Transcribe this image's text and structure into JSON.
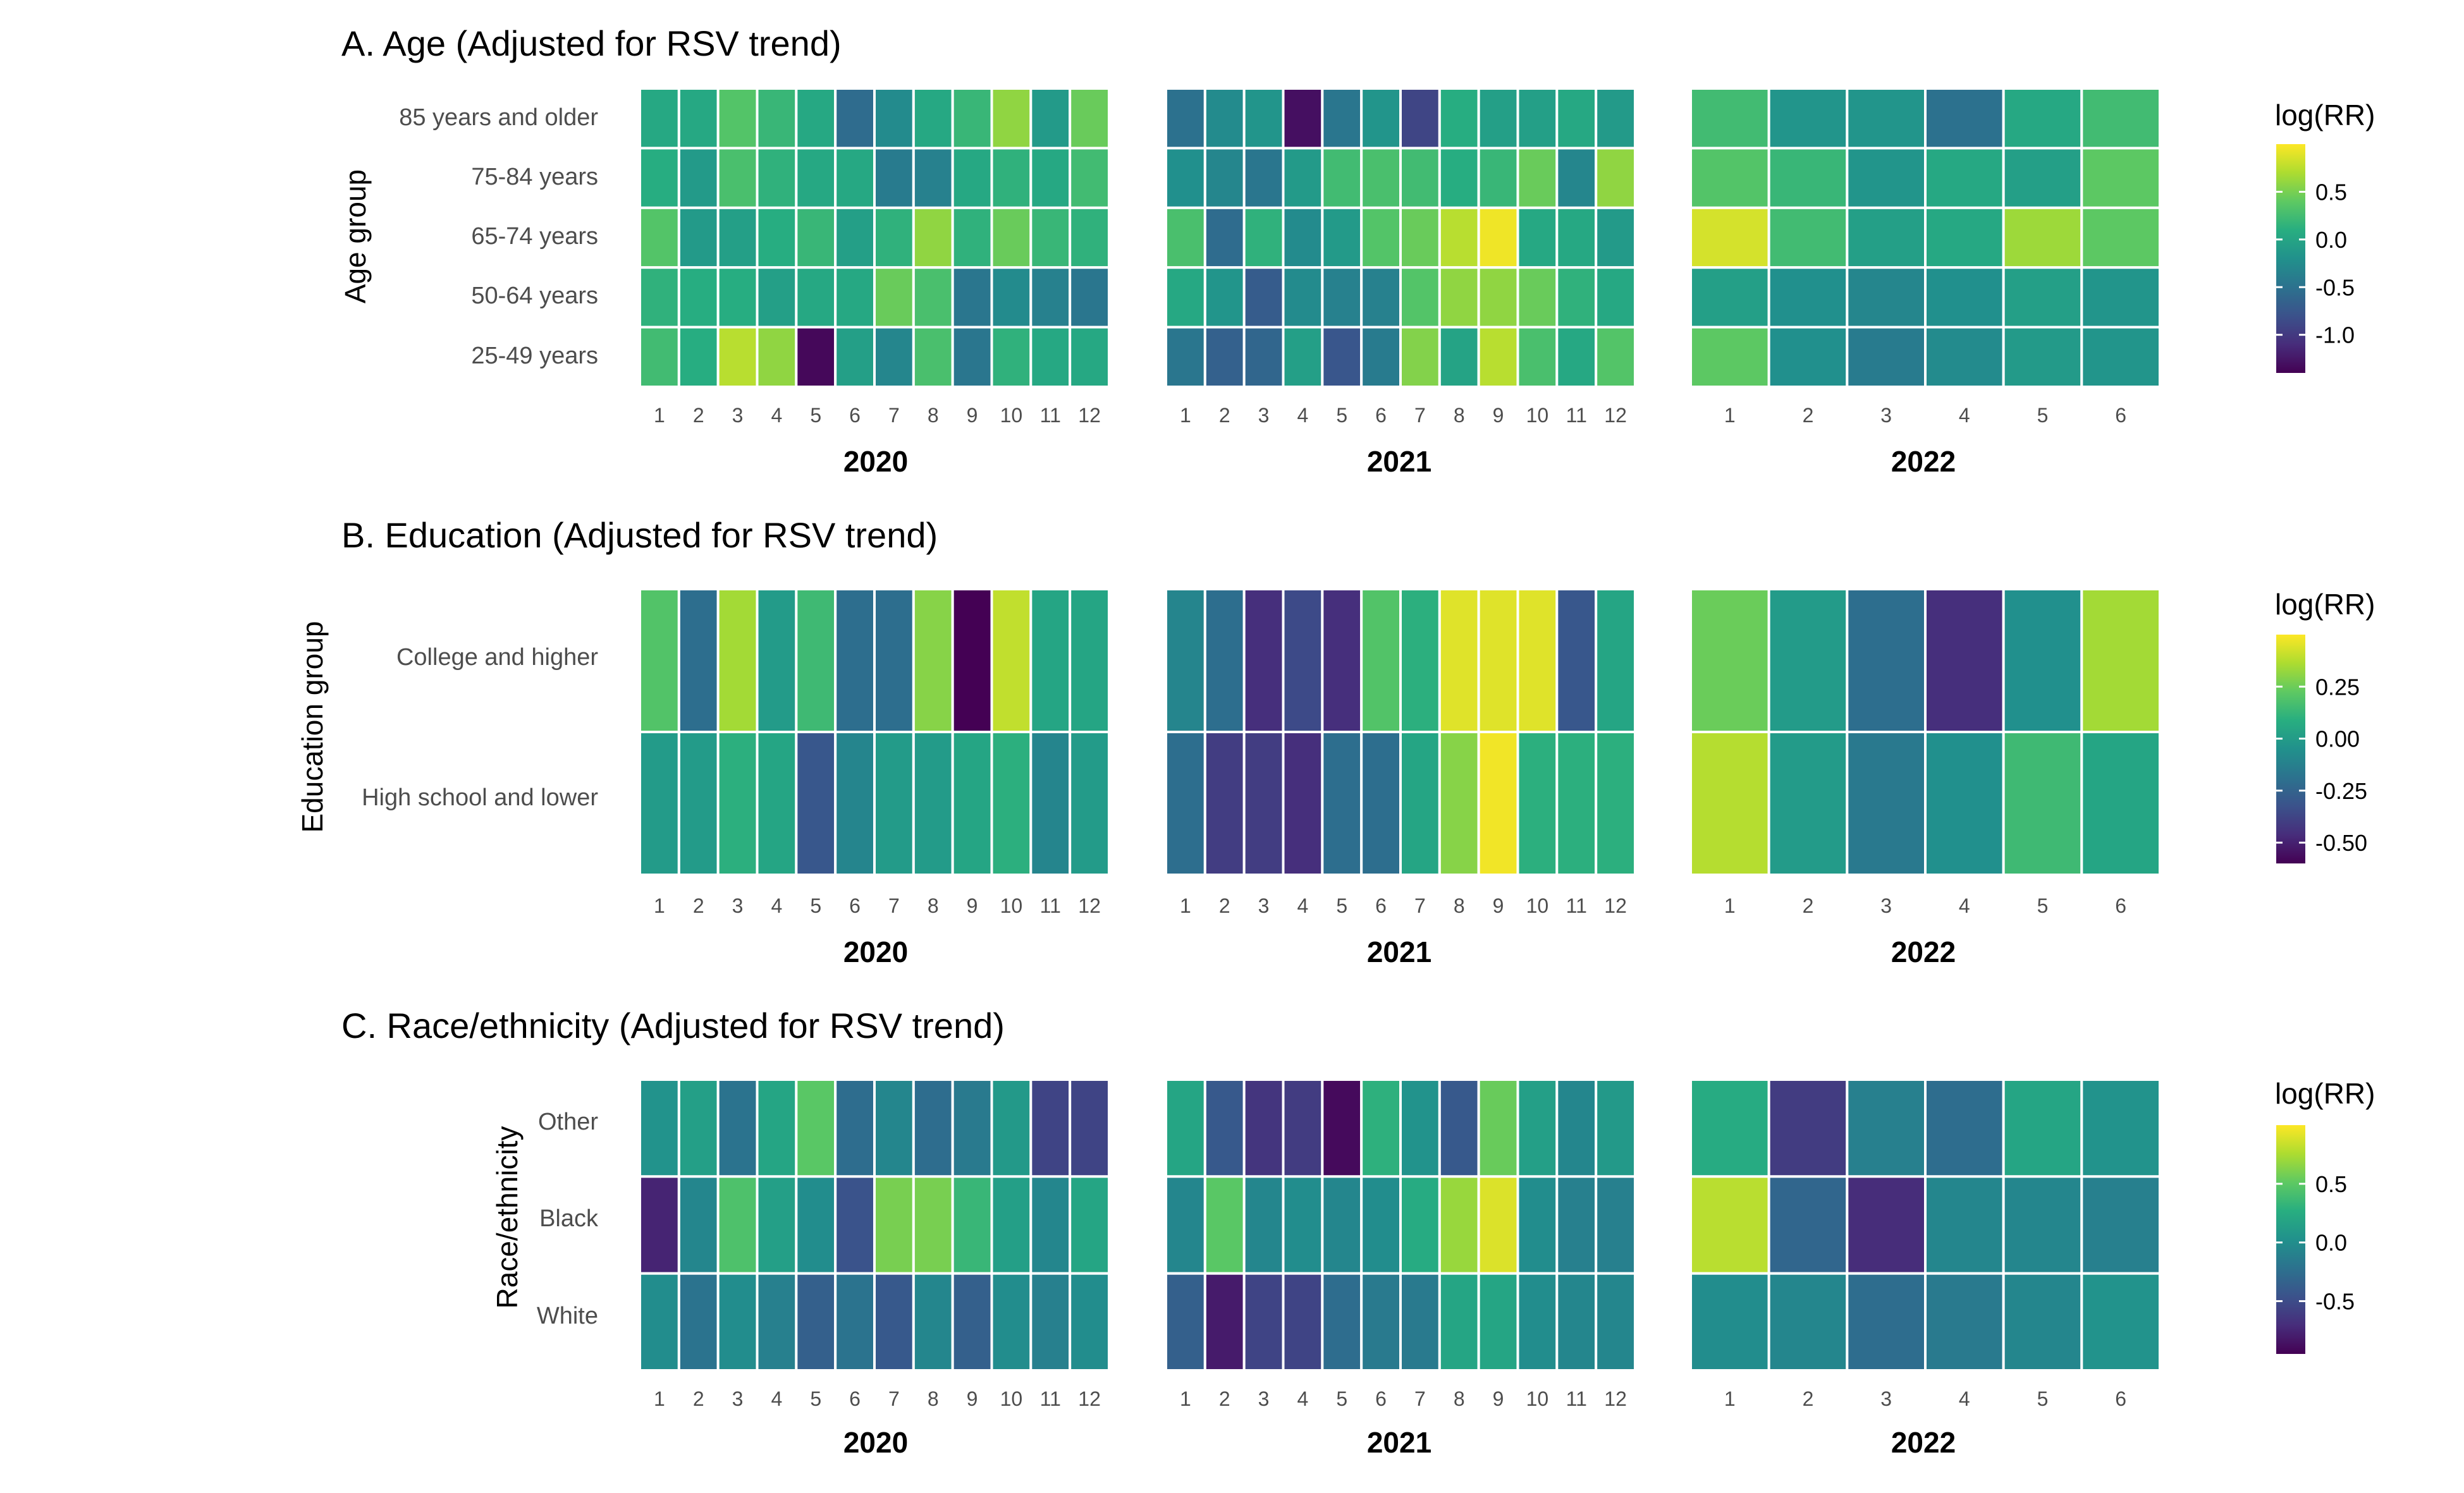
{
  "chart_data": [
    {
      "type": "heatmap",
      "title": "A. Age (Adjusted for RSV trend)",
      "ylabel": "Age group",
      "rows": [
        "85 years and older",
        "75-84 years",
        "65-74 years",
        "50-64 years",
        "25-49 years"
      ],
      "years": [
        {
          "label": "2020",
          "months": [
            "1",
            "2",
            "3",
            "4",
            "5",
            "6",
            "7",
            "8",
            "9",
            "10",
            "11",
            "12"
          ]
        },
        {
          "label": "2021",
          "months": [
            "1",
            "2",
            "3",
            "4",
            "5",
            "6",
            "7",
            "8",
            "9",
            "10",
            "11",
            "12"
          ]
        },
        {
          "label": "2022",
          "months": [
            "1",
            "2",
            "3",
            "4",
            "5",
            "6"
          ]
        }
      ],
      "values": [
        [
          [
            0.05,
            0.05,
            0.35,
            0.2,
            0.05,
            -0.55,
            -0.25,
            0.05,
            0.2,
            0.6,
            -0.1,
            0.45
          ],
          [
            -0.5,
            -0.25,
            -0.15,
            -1.3,
            -0.45,
            -0.15,
            -0.9,
            0.1,
            -0.05,
            -0.05,
            0.05,
            -0.1
          ],
          [
            0.25,
            -0.15,
            -0.15,
            -0.5,
            0.05,
            0.25
          ]
        ],
        [
          [
            0.1,
            -0.1,
            0.3,
            0.15,
            0.05,
            0.05,
            -0.4,
            -0.35,
            0.05,
            0.15,
            0.05,
            0.25
          ],
          [
            -0.2,
            -0.3,
            -0.45,
            -0.1,
            0.25,
            0.3,
            0.25,
            0.1,
            0.2,
            0.45,
            -0.3,
            0.6
          ],
          [
            0.35,
            0.2,
            -0.15,
            0.05,
            -0.05,
            0.4
          ]
        ],
        [
          [
            0.35,
            -0.1,
            -0.05,
            0.1,
            0.2,
            -0.05,
            0.15,
            0.6,
            0.15,
            0.45,
            0.2,
            0.15
          ],
          [
            0.3,
            -0.55,
            0.15,
            -0.25,
            -0.1,
            0.35,
            0.45,
            0.75,
            0.95,
            0.05,
            0.05,
            -0.1
          ],
          [
            0.85,
            0.25,
            -0.05,
            0.05,
            0.65,
            0.4
          ]
        ],
        [
          [
            0.15,
            0.1,
            0.1,
            -0.05,
            0.05,
            0.05,
            0.45,
            0.3,
            -0.45,
            -0.25,
            -0.35,
            -0.45
          ],
          [
            0.05,
            -0.15,
            -0.7,
            -0.25,
            -0.35,
            -0.35,
            0.35,
            0.6,
            0.6,
            0.45,
            0.15,
            0.05
          ],
          [
            -0.05,
            -0.2,
            -0.3,
            -0.2,
            -0.05,
            -0.15
          ]
        ],
        [
          [
            0.25,
            0.1,
            0.75,
            0.6,
            -1.35,
            -0.05,
            -0.3,
            0.3,
            -0.45,
            0.15,
            0.05,
            0.05
          ],
          [
            -0.45,
            -0.65,
            -0.6,
            -0.05,
            -0.75,
            -0.4,
            0.55,
            0.0,
            0.75,
            0.3,
            0.05,
            0.35
          ],
          [
            0.4,
            -0.2,
            -0.4,
            -0.25,
            -0.1,
            -0.15
          ]
        ]
      ],
      "legend": {
        "title": "log(RR)",
        "min": -1.4,
        "max": 1.0,
        "ticks": [
          0.5,
          0.0,
          -0.5,
          -1.0
        ],
        "tick_labels": [
          "0.5",
          "0.0",
          "-0.5",
          "-1.0"
        ]
      }
    },
    {
      "type": "heatmap",
      "title": "B. Education (Adjusted for RSV trend)",
      "ylabel": "Education group",
      "rows": [
        "College and higher",
        "High school and lower"
      ],
      "years": [
        {
          "label": "2020",
          "months": [
            "1",
            "2",
            "3",
            "4",
            "5",
            "6",
            "7",
            "8",
            "9",
            "10",
            "11",
            "12"
          ]
        },
        {
          "label": "2021",
          "months": [
            "1",
            "2",
            "3",
            "4",
            "5",
            "6",
            "7",
            "8",
            "9",
            "10",
            "11",
            "12"
          ]
        },
        {
          "label": "2022",
          "months": [
            "1",
            "2",
            "3",
            "4",
            "5",
            "6"
          ]
        }
      ],
      "values": [
        [
          [
            0.2,
            -0.2,
            0.35,
            0.0,
            0.15,
            -0.2,
            -0.2,
            0.3,
            -0.6,
            0.4,
            0.05,
            0.05
          ],
          [
            -0.1,
            -0.2,
            -0.45,
            -0.35,
            -0.45,
            0.2,
            0.1,
            0.45,
            0.45,
            0.45,
            -0.3,
            0.05
          ],
          [
            0.25,
            0.0,
            -0.2,
            -0.45,
            -0.05,
            0.35
          ]
        ],
        [
          [
            0.0,
            0.0,
            0.1,
            0.05,
            -0.3,
            -0.1,
            0.0,
            0.0,
            0.05,
            0.1,
            -0.1,
            0.0
          ],
          [
            -0.2,
            -0.4,
            -0.4,
            -0.45,
            -0.2,
            -0.2,
            0.05,
            0.3,
            0.48,
            0.1,
            0.1,
            0.1
          ],
          [
            0.38,
            0.0,
            -0.15,
            -0.05,
            0.15,
            0.05
          ]
        ]
      ],
      "legend": {
        "title": "log(RR)",
        "min": -0.6,
        "max": 0.5,
        "ticks": [
          0.25,
          0.0,
          -0.25,
          -0.5
        ],
        "tick_labels": [
          "0.25",
          "0.00",
          "-0.25",
          "-0.50"
        ]
      }
    },
    {
      "type": "heatmap",
      "title": "C. Race/ethnicity (Adjusted for RSV trend)",
      "ylabel": "Race/ethnicity",
      "rows": [
        "Other",
        "Black",
        "White"
      ],
      "years": [
        {
          "label": "2020",
          "months": [
            "1",
            "2",
            "3",
            "4",
            "5",
            "6",
            "7",
            "8",
            "9",
            "10",
            "11",
            "12"
          ]
        },
        {
          "label": "2021",
          "months": [
            "1",
            "2",
            "3",
            "4",
            "5",
            "6",
            "7",
            "8",
            "9",
            "10",
            "11",
            "12"
          ]
        },
        {
          "label": "2022",
          "months": [
            "1",
            "2",
            "3",
            "4",
            "5",
            "6"
          ]
        }
      ],
      "values": [
        [
          [
            0.05,
            0.15,
            -0.2,
            0.2,
            0.5,
            -0.25,
            -0.05,
            -0.25,
            -0.15,
            0.1,
            -0.55,
            -0.55
          ],
          [
            0.2,
            -0.4,
            -0.65,
            -0.6,
            -0.9,
            0.3,
            0.05,
            -0.4,
            0.55,
            0.15,
            -0.05,
            0.1
          ],
          [
            0.25,
            -0.6,
            -0.1,
            -0.25,
            0.2,
            0.05
          ]
        ],
        [
          [
            -0.75,
            -0.05,
            0.45,
            0.15,
            0.0,
            -0.45,
            0.6,
            0.6,
            0.35,
            0.15,
            -0.05,
            0.2
          ],
          [
            -0.05,
            0.5,
            -0.05,
            0.0,
            -0.05,
            0.0,
            0.25,
            0.7,
            0.9,
            0.0,
            -0.1,
            -0.1
          ],
          [
            0.8,
            -0.3,
            -0.7,
            -0.05,
            -0.05,
            -0.1
          ]
        ],
        [
          [
            0.0,
            -0.2,
            0.0,
            -0.1,
            -0.35,
            -0.2,
            -0.4,
            -0.05,
            -0.35,
            0.0,
            -0.1,
            0.0
          ],
          [
            -0.35,
            -0.8,
            -0.55,
            -0.55,
            -0.25,
            -0.15,
            -0.15,
            0.2,
            0.2,
            0.0,
            -0.05,
            -0.05
          ],
          [
            0.0,
            -0.05,
            -0.25,
            -0.15,
            -0.05,
            0.05
          ]
        ]
      ],
      "legend": {
        "title": "log(RR)",
        "min": -0.95,
        "max": 1.0,
        "ticks": [
          0.5,
          0.0,
          -0.5
        ],
        "tick_labels": [
          "0.5",
          "0.0",
          "-0.5"
        ]
      }
    }
  ]
}
